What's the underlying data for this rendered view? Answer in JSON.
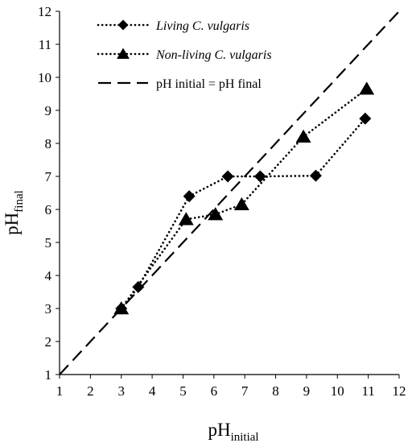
{
  "chart_data": {
    "type": "scatter",
    "xlabel": "pH",
    "xlabel_sub": "initial",
    "ylabel": "pH",
    "ylabel_sub": "final",
    "xlim": [
      1,
      12
    ],
    "ylim": [
      1,
      12
    ],
    "xticks": [
      1,
      2,
      3,
      4,
      5,
      6,
      7,
      8,
      9,
      10,
      11,
      12
    ],
    "yticks": [
      1,
      2,
      3,
      4,
      5,
      6,
      7,
      8,
      9,
      10,
      11,
      12
    ],
    "grid": false,
    "legend_position": "top-left",
    "series": [
      {
        "name": "Living C. vulgaris",
        "marker": "diamond",
        "line": "dotted",
        "italic": true,
        "x": [
          3.0,
          3.55,
          5.2,
          6.45,
          7.5,
          9.3,
          10.9
        ],
        "y": [
          3.0,
          3.65,
          6.4,
          7.0,
          7.0,
          7.02,
          8.75
        ]
      },
      {
        "name": "Non-living C. vulgaris",
        "marker": "triangle",
        "line": "dotted",
        "italic": true,
        "x": [
          3.0,
          5.1,
          6.05,
          6.9,
          8.9,
          10.95
        ],
        "y": [
          3.0,
          5.7,
          5.85,
          6.15,
          8.2,
          9.65
        ]
      },
      {
        "name": "pH initial = pH final",
        "marker": "none",
        "line": "dashed",
        "italic": false,
        "x": [
          1,
          12
        ],
        "y": [
          1,
          12
        ]
      }
    ]
  }
}
